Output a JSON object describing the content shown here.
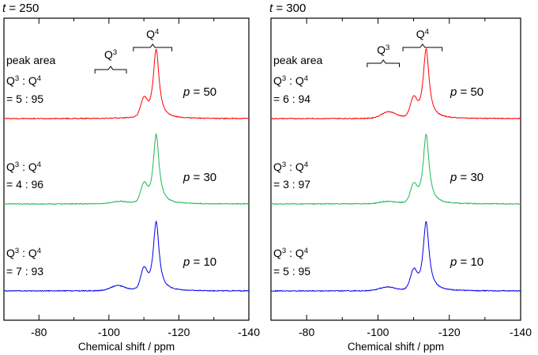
{
  "chart_data": [
    {
      "type": "line",
      "panel_label_var": "t",
      "panel_label_value": "250",
      "xlabel": "Chemical shift / ppm",
      "xlim": [
        -70,
        -140
      ],
      "x_ticks": [
        -80,
        -100,
        -120,
        -140
      ],
      "y_axis": "none",
      "grid": false,
      "region_labels": {
        "q3": "Q",
        "q4": "Q",
        "sup": "3",
        "sup4": "4",
        "q3_range": [
          -96,
          -105
        ],
        "q4_range": [
          -107,
          -118
        ]
      },
      "series": [
        {
          "name": "p = 50",
          "param_var": "p",
          "param_value": "50",
          "color": "#ff0000",
          "ratio_header": "peak area",
          "ratio_label": "Q3 : Q4",
          "ratio_value": "= 5 : 95",
          "q3_peak": {
            "center": -103,
            "height": 0.0
          },
          "q4_main": {
            "center": -113.5,
            "height": 1.0
          },
          "q4_shoulder": {
            "center": -110,
            "height": 0.24
          }
        },
        {
          "name": "p = 30",
          "param_var": "p",
          "param_value": "30",
          "color": "#1db954",
          "ratio_header": "",
          "ratio_label": "Q3 : Q4",
          "ratio_value": "= 4 : 96",
          "q3_peak": {
            "center": -103,
            "height": 0.03
          },
          "q4_main": {
            "center": -113.5,
            "height": 1.0
          },
          "q4_shoulder": {
            "center": -110,
            "height": 0.24
          }
        },
        {
          "name": "p = 10",
          "param_var": "p",
          "param_value": "10",
          "color": "#0000ee",
          "ratio_header": "",
          "ratio_label": "Q3 : Q4",
          "ratio_value": "= 7 : 93",
          "q3_peak": {
            "center": -102.5,
            "height": 0.07
          },
          "q4_main": {
            "center": -113.5,
            "height": 1.0
          },
          "q4_shoulder": {
            "center": -110,
            "height": 0.27
          }
        }
      ]
    },
    {
      "type": "line",
      "panel_label_var": "t",
      "panel_label_value": "300",
      "xlabel": "Chemical shift / ppm",
      "xlim": [
        -70,
        -140
      ],
      "x_ticks": [
        -80,
        -100,
        -120,
        -140
      ],
      "y_axis": "none",
      "grid": false,
      "region_labels": {
        "q3": "Q",
        "q4": "Q",
        "sup": "3",
        "sup4": "4",
        "q3_range": [
          -97,
          -106
        ],
        "q4_range": [
          -107,
          -118
        ]
      },
      "series": [
        {
          "name": "p = 50",
          "param_var": "p",
          "param_value": "50",
          "color": "#ff0000",
          "ratio_header": "peak area",
          "ratio_label": "Q3 : Q4",
          "ratio_value": "= 6 : 94",
          "q3_peak": {
            "center": -103,
            "height": 0.09
          },
          "q4_main": {
            "center": -113.5,
            "height": 1.0
          },
          "q4_shoulder": {
            "center": -110,
            "height": 0.25
          }
        },
        {
          "name": "p = 30",
          "param_var": "p",
          "param_value": "30",
          "color": "#1db954",
          "ratio_header": "",
          "ratio_label": "Q3 : Q4",
          "ratio_value": "= 3 : 97",
          "q3_peak": {
            "center": -102.5,
            "height": 0.03
          },
          "q4_main": {
            "center": -113.5,
            "height": 1.0
          },
          "q4_shoulder": {
            "center": -110,
            "height": 0.23
          }
        },
        {
          "name": "p = 10",
          "param_var": "p",
          "param_value": "10",
          "color": "#0000ee",
          "ratio_header": "",
          "ratio_label": "Q3 : Q4",
          "ratio_value": "= 5 : 95",
          "q3_peak": {
            "center": -102.5,
            "height": 0.05
          },
          "q4_main": {
            "center": -113.5,
            "height": 1.0
          },
          "q4_shoulder": {
            "center": -110,
            "height": 0.25
          }
        }
      ]
    }
  ]
}
